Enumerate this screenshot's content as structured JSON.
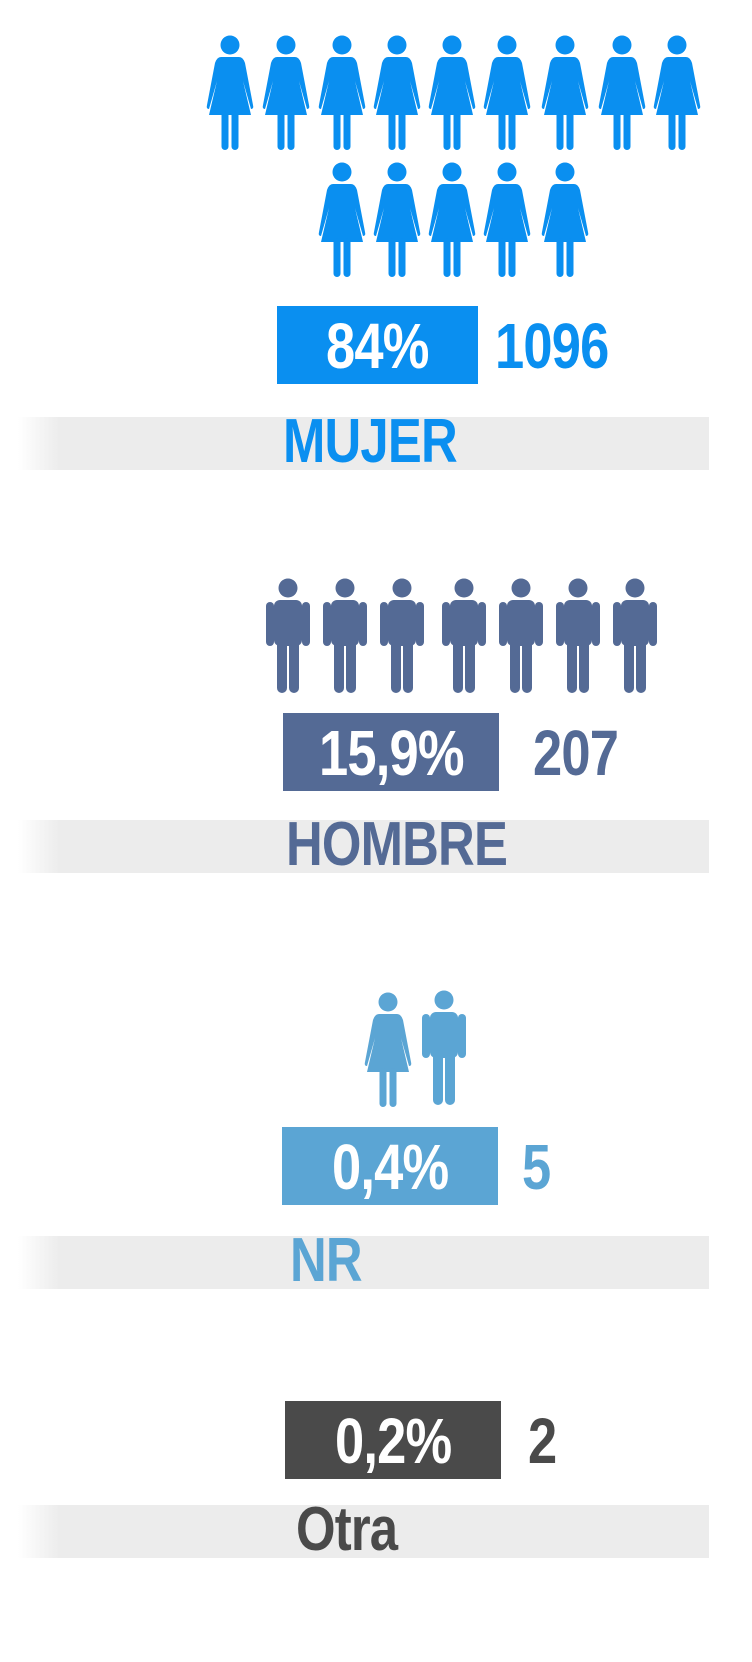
{
  "groups": [
    {
      "percent": "84%",
      "count": "1096",
      "label": "MUJER"
    },
    {
      "percent": "15,9%",
      "count": "207",
      "label": "HOMBRE"
    },
    {
      "percent": "0,4%",
      "count": "5",
      "label": "NR"
    },
    {
      "percent": "0,2%",
      "count": "2",
      "label": "Otra"
    }
  ]
}
